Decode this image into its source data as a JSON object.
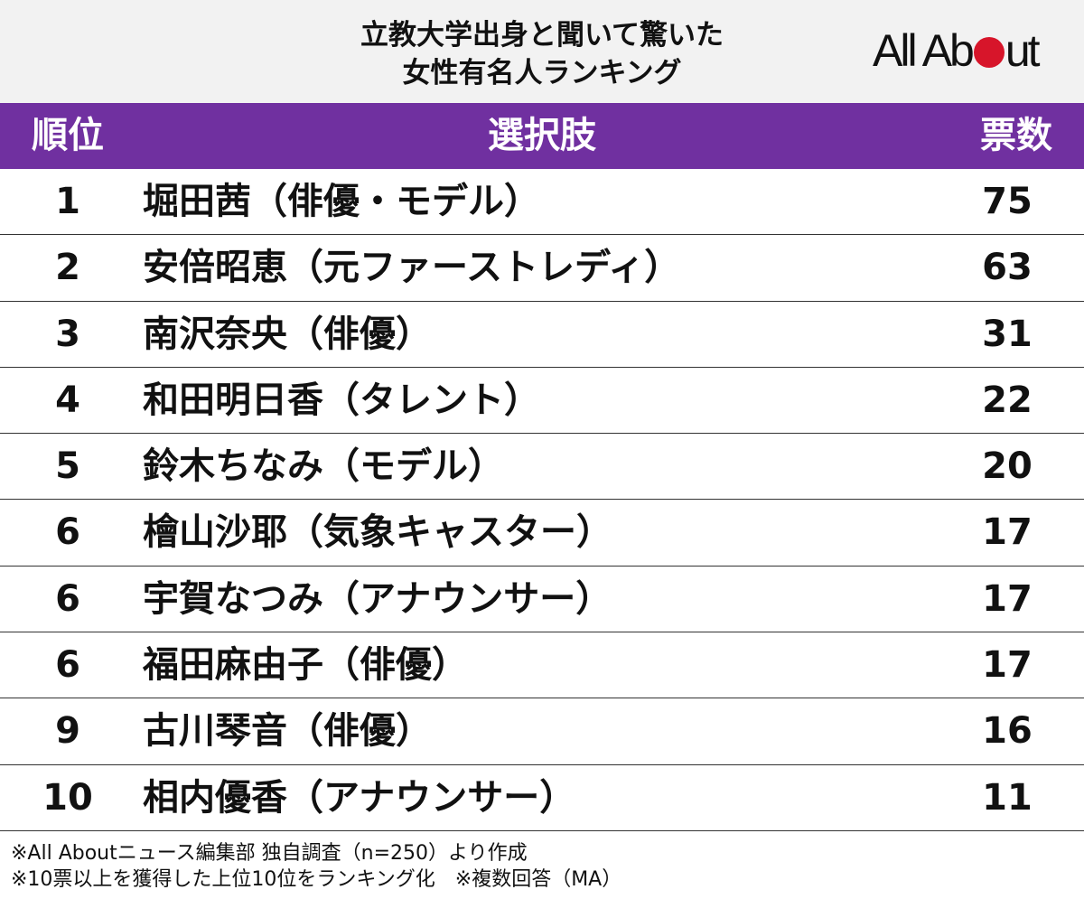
{
  "title": {
    "line1": "立教大学出身と聞いて驚いた",
    "line2": "女性有名人ランキング"
  },
  "logo": {
    "text_before": "All Ab",
    "text_after": "ut",
    "dot_color": "#d7152a"
  },
  "header_color": "#7030a0",
  "columns": {
    "rank": "順位",
    "choice": "選択肢",
    "votes": "票数"
  },
  "chart_data": {
    "type": "table",
    "rows": [
      {
        "rank": "1",
        "name": "堀田茜（俳優・モデル）",
        "votes": 75
      },
      {
        "rank": "2",
        "name": "安倍昭恵（元ファーストレディ）",
        "votes": 63
      },
      {
        "rank": "3",
        "name": "南沢奈央（俳優）",
        "votes": 31
      },
      {
        "rank": "4",
        "name": "和田明日香（タレント）",
        "votes": 22
      },
      {
        "rank": "5",
        "name": "鈴木ちなみ（モデル）",
        "votes": 20
      },
      {
        "rank": "6",
        "name": "檜山沙耶（気象キャスター）",
        "votes": 17
      },
      {
        "rank": "6",
        "name": "宇賀なつみ（アナウンサー）",
        "votes": 17
      },
      {
        "rank": "6",
        "name": "福田麻由子（俳優）",
        "votes": 17
      },
      {
        "rank": "9",
        "name": "古川琴音（俳優）",
        "votes": 16
      },
      {
        "rank": "10",
        "name": "相内優香（アナウンサー）",
        "votes": 11
      }
    ]
  },
  "notes": {
    "line1": "※All Aboutニュース編集部 独自調査（n=250）より作成",
    "line2": "※10票以上を獲得した上位10位をランキング化　※複数回答（MA）"
  }
}
